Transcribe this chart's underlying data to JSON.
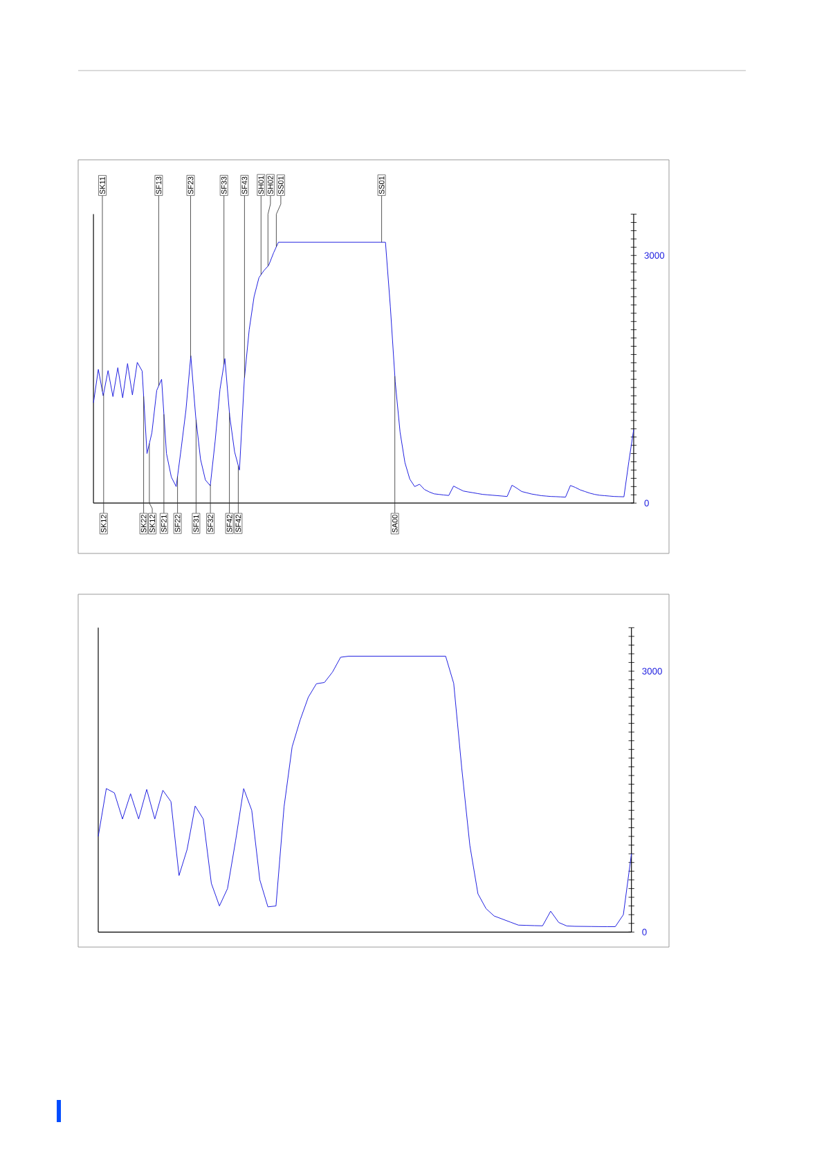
{
  "chart_data": [
    {
      "type": "line",
      "color": "#2020e0",
      "tick_labels": "y",
      "categories": [
        null,
        null,
        null,
        null,
        null,
        null,
        null,
        null,
        null,
        null,
        null,
        null,
        null,
        null,
        null,
        null,
        null,
        null,
        null,
        null,
        null,
        null,
        null,
        null,
        null,
        null,
        null,
        null,
        null,
        null,
        null,
        null,
        null,
        null,
        null,
        null,
        null,
        null,
        null,
        null,
        null,
        null,
        null,
        null,
        null,
        null,
        null,
        null,
        null,
        null,
        null,
        null,
        null,
        null,
        null,
        null,
        null,
        null,
        null,
        null,
        null,
        null,
        null,
        null,
        null,
        null,
        null,
        null,
        null,
        null,
        null,
        null,
        null,
        null,
        null,
        null,
        null,
        null,
        null,
        null,
        null,
        null,
        null,
        null,
        null,
        null,
        null,
        null,
        null,
        null,
        null,
        null,
        null,
        null,
        null,
        null,
        null,
        null,
        null,
        null,
        null,
        null,
        null,
        null,
        null,
        null,
        null,
        null,
        null,
        null,
        null,
        null
      ],
      "values": [
        1215,
        1620,
        1300,
        1605,
        1290,
        1640,
        1275,
        1690,
        1310,
        1705,
        1600,
        600,
        850,
        1365,
        1500,
        600,
        315,
        200,
        650,
        1125,
        1785,
        1050,
        530,
        280,
        210,
        750,
        1380,
        1750,
        1050,
        620,
        400,
        1500,
        2100,
        2500,
        2730,
        2815,
        2880,
        3030,
        3160,
        3160,
        3160,
        3160,
        3160,
        3160,
        3160,
        3160,
        3160,
        3160,
        3160,
        3160,
        3160,
        3160,
        3160,
        3160,
        3160,
        3160,
        3160,
        3160,
        3160,
        3160,
        3160,
        2380,
        1470,
        860,
        490,
        290,
        200,
        228,
        165,
        135,
        112,
        105,
        98,
        92,
        206,
        175,
        146,
        135,
        125,
        115,
        105,
        100,
        95,
        90,
        85,
        80,
        216,
        180,
        140,
        125,
        110,
        100,
        90,
        85,
        80,
        78,
        75,
        72,
        213,
        190,
        160,
        140,
        120,
        105,
        95,
        90,
        85,
        80,
        78,
        76,
        500,
        890
      ],
      "ylim": [
        0,
        3500
      ],
      "yticks": [
        0,
        {
          "value": 100,
          "label": null
        },
        {
          "value": 200,
          "label": null
        },
        {
          "value": 300,
          "label": null
        },
        {
          "value": 400,
          "label": null
        },
        {
          "value": 500,
          "label": null
        },
        {
          "value": 600,
          "label": null
        },
        {
          "value": 700,
          "label": null
        },
        {
          "value": 800,
          "label": null
        },
        {
          "value": 900,
          "label": null
        },
        {
          "value": 1000,
          "label": null
        },
        {
          "value": 1100,
          "label": null
        },
        {
          "value": 1200,
          "label": null
        },
        {
          "value": 1300,
          "label": null
        },
        {
          "value": 1400,
          "label": null
        },
        {
          "value": 1500,
          "label": null
        },
        {
          "value": 1600,
          "label": null
        },
        {
          "value": 1700,
          "label": null
        },
        {
          "value": 1800,
          "label": null
        },
        {
          "value": 1900,
          "label": null
        },
        {
          "value": 2000,
          "label": null
        },
        {
          "value": 2100,
          "label": null
        },
        {
          "value": 2200,
          "label": null
        },
        {
          "value": 2300,
          "label": null
        },
        {
          "value": 2400,
          "label": null
        },
        {
          "value": 2500,
          "label": null
        },
        {
          "value": 2600,
          "label": null
        },
        {
          "value": 2700,
          "label": null
        },
        {
          "value": 2800,
          "label": null
        },
        {
          "value": 2900,
          "label": null
        },
        3000,
        {
          "value": 3100,
          "label": null
        },
        {
          "value": 3200,
          "label": null
        },
        {
          "value": 3300,
          "label": null
        },
        {
          "value": 3400,
          "label": null
        },
        {
          "value": 3500,
          "label": null
        }
      ],
      "annotations": [
        "SK11",
        "SF13",
        "SF23",
        "SF33",
        "SF43",
        "SH01",
        "SH02",
        "SS01",
        "SS01",
        "SK12",
        "SK22",
        "SK12",
        "SF21",
        "SF22",
        "SF31",
        "SF32",
        "SF42",
        "SF42",
        "SA00"
      ]
    },
    {
      "type": "line",
      "color": "#2020e0",
      "tick_labels": "y",
      "categories": [
        null,
        null,
        null,
        null,
        null,
        null,
        null,
        null,
        null,
        null,
        null,
        null,
        null,
        null,
        null,
        null,
        null,
        null,
        null,
        null,
        null,
        null,
        null,
        null,
        null,
        null,
        null,
        null,
        null,
        null,
        null,
        null,
        null,
        null,
        null,
        null,
        null,
        null,
        null,
        null,
        null,
        null,
        null,
        null,
        null,
        null,
        null,
        null,
        null,
        null,
        null,
        null,
        null,
        null,
        null,
        null,
        null,
        null,
        null,
        null,
        null,
        null,
        null,
        null,
        null,
        null,
        null
      ],
      "values": [
        1100,
        1650,
        1600,
        1300,
        1590,
        1300,
        1640,
        1300,
        1630,
        1500,
        650,
        950,
        1450,
        1300,
        560,
        300,
        500,
        1050,
        1650,
        1400,
        600,
        290,
        300,
        1440,
        2130,
        2440,
        2700,
        2855,
        2870,
        2990,
        3160,
        3172,
        3172,
        3172,
        3172,
        3172,
        3172,
        3172,
        3172,
        3172,
        3172,
        3172,
        3172,
        3172,
        2860,
        1880,
        995,
        440,
        270,
        185,
        150,
        115,
        80,
        77,
        74,
        72,
        240,
        110,
        70,
        66,
        65,
        64,
        63,
        62,
        62,
        200,
        900
      ],
      "ylim": [
        0,
        3500
      ],
      "yticks": [
        0,
        {
          "value": 100,
          "label": null
        },
        {
          "value": 200,
          "label": null
        },
        {
          "value": 300,
          "label": null
        },
        {
          "value": 400,
          "label": null
        },
        {
          "value": 500,
          "label": null
        },
        {
          "value": 600,
          "label": null
        },
        {
          "value": 700,
          "label": null
        },
        {
          "value": 800,
          "label": null
        },
        {
          "value": 900,
          "label": null
        },
        {
          "value": 1000,
          "label": null
        },
        {
          "value": 1100,
          "label": null
        },
        {
          "value": 1200,
          "label": null
        },
        {
          "value": 1300,
          "label": null
        },
        {
          "value": 1400,
          "label": null
        },
        {
          "value": 1500,
          "label": null
        },
        {
          "value": 1600,
          "label": null
        },
        {
          "value": 1700,
          "label": null
        },
        {
          "value": 1800,
          "label": null
        },
        {
          "value": 1900,
          "label": null
        },
        {
          "value": 2000,
          "label": null
        },
        {
          "value": 2100,
          "label": null
        },
        {
          "value": 2200,
          "label": null
        },
        {
          "value": 2300,
          "label": null
        },
        {
          "value": 2400,
          "label": null
        },
        {
          "value": 2500,
          "label": null
        },
        {
          "value": 2600,
          "label": null
        },
        {
          "value": 2700,
          "label": null
        },
        {
          "value": 2800,
          "label": null
        },
        {
          "value": 2900,
          "label": null
        },
        3000,
        {
          "value": 3100,
          "label": null
        },
        {
          "value": 3200,
          "label": null
        },
        {
          "value": 3300,
          "label": null
        },
        {
          "value": 3400,
          "label": null
        },
        {
          "value": 3500,
          "label": null
        }
      ]
    }
  ]
}
